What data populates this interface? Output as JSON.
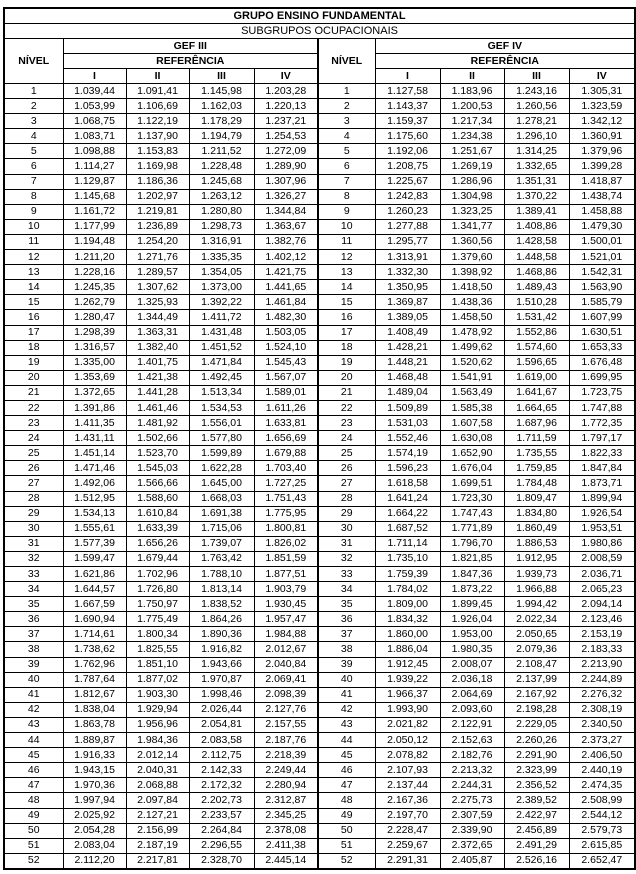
{
  "title": "GRUPO ENSINO FUNDAMENTAL",
  "subtitle": "SUBGRUPOS OCUPACIONAIS",
  "left": {
    "nivel_label": "NÍVEL",
    "group": "GEF III",
    "referencia": "REFERÊNCIA",
    "refs": [
      "I",
      "II",
      "III",
      "IV"
    ]
  },
  "right": {
    "nivel_label": "NÍVEL",
    "group": "GEF IV",
    "referencia": "REFERÊNCIA",
    "refs": [
      "I",
      "II",
      "III",
      "IV"
    ]
  },
  "rows": [
    {
      "n": "1",
      "g3": [
        "1.039,44",
        "1.091,41",
        "1.145,98",
        "1.203,28"
      ],
      "g4": [
        "1.127,58",
        "1.183,96",
        "1.243,16",
        "1.305,31"
      ]
    },
    {
      "n": "2",
      "g3": [
        "1.053,99",
        "1.106,69",
        "1.162,03",
        "1.220,13"
      ],
      "g4": [
        "1.143,37",
        "1.200,53",
        "1.260,56",
        "1.323,59"
      ]
    },
    {
      "n": "3",
      "g3": [
        "1.068,75",
        "1.122,19",
        "1.178,29",
        "1.237,21"
      ],
      "g4": [
        "1.159,37",
        "1.217,34",
        "1.278,21",
        "1.342,12"
      ]
    },
    {
      "n": "4",
      "g3": [
        "1.083,71",
        "1.137,90",
        "1.194,79",
        "1.254,53"
      ],
      "g4": [
        "1.175,60",
        "1.234,38",
        "1.296,10",
        "1.360,91"
      ]
    },
    {
      "n": "5",
      "g3": [
        "1.098,88",
        "1.153,83",
        "1.211,52",
        "1.272,09"
      ],
      "g4": [
        "1.192,06",
        "1.251,67",
        "1.314,25",
        "1.379,96"
      ]
    },
    {
      "n": "6",
      "g3": [
        "1.114,27",
        "1.169,98",
        "1.228,48",
        "1.289,90"
      ],
      "g4": [
        "1.208,75",
        "1.269,19",
        "1.332,65",
        "1.399,28"
      ]
    },
    {
      "n": "7",
      "g3": [
        "1.129,87",
        "1.186,36",
        "1.245,68",
        "1.307,96"
      ],
      "g4": [
        "1.225,67",
        "1.286,96",
        "1.351,31",
        "1.418,87"
      ]
    },
    {
      "n": "8",
      "g3": [
        "1.145,68",
        "1.202,97",
        "1.263,12",
        "1.326,27"
      ],
      "g4": [
        "1.242,83",
        "1.304,98",
        "1.370,22",
        "1.438,74"
      ]
    },
    {
      "n": "9",
      "g3": [
        "1.161,72",
        "1.219,81",
        "1.280,80",
        "1.344,84"
      ],
      "g4": [
        "1.260,23",
        "1.323,25",
        "1.389,41",
        "1.458,88"
      ]
    },
    {
      "n": "10",
      "g3": [
        "1.177,99",
        "1.236,89",
        "1.298,73",
        "1.363,67"
      ],
      "g4": [
        "1.277,88",
        "1.341,77",
        "1.408,86",
        "1.479,30"
      ]
    },
    {
      "n": "11",
      "g3": [
        "1.194,48",
        "1.254,20",
        "1.316,91",
        "1.382,76"
      ],
      "g4": [
        "1.295,77",
        "1.360,56",
        "1.428,58",
        "1.500,01"
      ]
    },
    {
      "n": "12",
      "g3": [
        "1.211,20",
        "1.271,76",
        "1.335,35",
        "1.402,12"
      ],
      "g4": [
        "1.313,91",
        "1.379,60",
        "1.448,58",
        "1.521,01"
      ]
    },
    {
      "n": "13",
      "g3": [
        "1.228,16",
        "1.289,57",
        "1.354,05",
        "1.421,75"
      ],
      "g4": [
        "1.332,30",
        "1.398,92",
        "1.468,86",
        "1.542,31"
      ]
    },
    {
      "n": "14",
      "g3": [
        "1.245,35",
        "1.307,62",
        "1.373,00",
        "1.441,65"
      ],
      "g4": [
        "1.350,95",
        "1.418,50",
        "1.489,43",
        "1.563,90"
      ]
    },
    {
      "n": "15",
      "g3": [
        "1.262,79",
        "1.325,93",
        "1.392,22",
        "1.461,84"
      ],
      "g4": [
        "1.369,87",
        "1.438,36",
        "1.510,28",
        "1.585,79"
      ]
    },
    {
      "n": "16",
      "g3": [
        "1.280,47",
        "1.344,49",
        "1.411,72",
        "1.482,30"
      ],
      "g4": [
        "1.389,05",
        "1.458,50",
        "1.531,42",
        "1.607,99"
      ]
    },
    {
      "n": "17",
      "g3": [
        "1.298,39",
        "1.363,31",
        "1.431,48",
        "1.503,05"
      ],
      "g4": [
        "1.408,49",
        "1.478,92",
        "1.552,86",
        "1.630,51"
      ]
    },
    {
      "n": "18",
      "g3": [
        "1.316,57",
        "1.382,40",
        "1.451,52",
        "1.524,10"
      ],
      "g4": [
        "1.428,21",
        "1.499,62",
        "1.574,60",
        "1.653,33"
      ]
    },
    {
      "n": "19",
      "g3": [
        "1.335,00",
        "1.401,75",
        "1.471,84",
        "1.545,43"
      ],
      "g4": [
        "1.448,21",
        "1.520,62",
        "1.596,65",
        "1.676,48"
      ]
    },
    {
      "n": "20",
      "g3": [
        "1.353,69",
        "1.421,38",
        "1.492,45",
        "1.567,07"
      ],
      "g4": [
        "1.468,48",
        "1.541,91",
        "1.619,00",
        "1.699,95"
      ]
    },
    {
      "n": "21",
      "g3": [
        "1.372,65",
        "1.441,28",
        "1.513,34",
        "1.589,01"
      ],
      "g4": [
        "1.489,04",
        "1.563,49",
        "1.641,67",
        "1.723,75"
      ]
    },
    {
      "n": "22",
      "g3": [
        "1.391,86",
        "1.461,46",
        "1.534,53",
        "1.611,26"
      ],
      "g4": [
        "1.509,89",
        "1.585,38",
        "1.664,65",
        "1.747,88"
      ]
    },
    {
      "n": "23",
      "g3": [
        "1.411,35",
        "1.481,92",
        "1.556,01",
        "1.633,81"
      ],
      "g4": [
        "1.531,03",
        "1.607,58",
        "1.687,96",
        "1.772,35"
      ]
    },
    {
      "n": "24",
      "g3": [
        "1.431,11",
        "1.502,66",
        "1.577,80",
        "1.656,69"
      ],
      "g4": [
        "1.552,46",
        "1.630,08",
        "1.711,59",
        "1.797,17"
      ]
    },
    {
      "n": "25",
      "g3": [
        "1.451,14",
        "1.523,70",
        "1.599,89",
        "1.679,88"
      ],
      "g4": [
        "1.574,19",
        "1.652,90",
        "1.735,55",
        "1.822,33"
      ]
    },
    {
      "n": "26",
      "g3": [
        "1.471,46",
        "1.545,03",
        "1.622,28",
        "1.703,40"
      ],
      "g4": [
        "1.596,23",
        "1.676,04",
        "1.759,85",
        "1.847,84"
      ]
    },
    {
      "n": "27",
      "g3": [
        "1.492,06",
        "1.566,66",
        "1.645,00",
        "1.727,25"
      ],
      "g4": [
        "1.618,58",
        "1.699,51",
        "1.784,48",
        "1.873,71"
      ]
    },
    {
      "n": "28",
      "g3": [
        "1.512,95",
        "1.588,60",
        "1.668,03",
        "1.751,43"
      ],
      "g4": [
        "1.641,24",
        "1.723,30",
        "1.809,47",
        "1.899,94"
      ]
    },
    {
      "n": "29",
      "g3": [
        "1.534,13",
        "1.610,84",
        "1.691,38",
        "1.775,95"
      ],
      "g4": [
        "1.664,22",
        "1.747,43",
        "1.834,80",
        "1.926,54"
      ]
    },
    {
      "n": "30",
      "g3": [
        "1.555,61",
        "1.633,39",
        "1.715,06",
        "1.800,81"
      ],
      "g4": [
        "1.687,52",
        "1.771,89",
        "1.860,49",
        "1.953,51"
      ]
    },
    {
      "n": "31",
      "g3": [
        "1.577,39",
        "1.656,26",
        "1.739,07",
        "1.826,02"
      ],
      "g4": [
        "1.711,14",
        "1.796,70",
        "1.886,53",
        "1.980,86"
      ]
    },
    {
      "n": "32",
      "g3": [
        "1.599,47",
        "1.679,44",
        "1.763,42",
        "1.851,59"
      ],
      "g4": [
        "1.735,10",
        "1.821,85",
        "1.912,95",
        "2.008,59"
      ]
    },
    {
      "n": "33",
      "g3": [
        "1.621,86",
        "1.702,96",
        "1.788,10",
        "1.877,51"
      ],
      "g4": [
        "1.759,39",
        "1.847,36",
        "1.939,73",
        "2.036,71"
      ]
    },
    {
      "n": "34",
      "g3": [
        "1.644,57",
        "1.726,80",
        "1.813,14",
        "1.903,79"
      ],
      "g4": [
        "1.784,02",
        "1.873,22",
        "1.966,88",
        "2.065,23"
      ]
    },
    {
      "n": "35",
      "g3": [
        "1.667,59",
        "1.750,97",
        "1.838,52",
        "1.930,45"
      ],
      "g4": [
        "1.809,00",
        "1.899,45",
        "1.994,42",
        "2.094,14"
      ]
    },
    {
      "n": "36",
      "g3": [
        "1.690,94",
        "1.775,49",
        "1.864,26",
        "1.957,47"
      ],
      "g4": [
        "1.834,32",
        "1.926,04",
        "2.022,34",
        "2.123,46"
      ]
    },
    {
      "n": "37",
      "g3": [
        "1.714,61",
        "1.800,34",
        "1.890,36",
        "1.984,88"
      ],
      "g4": [
        "1.860,00",
        "1.953,00",
        "2.050,65",
        "2.153,19"
      ]
    },
    {
      "n": "38",
      "g3": [
        "1.738,62",
        "1.825,55",
        "1.916,82",
        "2.012,67"
      ],
      "g4": [
        "1.886,04",
        "1.980,35",
        "2.079,36",
        "2.183,33"
      ]
    },
    {
      "n": "39",
      "g3": [
        "1.762,96",
        "1.851,10",
        "1.943,66",
        "2.040,84"
      ],
      "g4": [
        "1.912,45",
        "2.008,07",
        "2.108,47",
        "2.213,90"
      ]
    },
    {
      "n": "40",
      "g3": [
        "1.787,64",
        "1.877,02",
        "1.970,87",
        "2.069,41"
      ],
      "g4": [
        "1.939,22",
        "2.036,18",
        "2.137,99",
        "2.244,89"
      ]
    },
    {
      "n": "41",
      "g3": [
        "1.812,67",
        "1.903,30",
        "1.998,46",
        "2.098,39"
      ],
      "g4": [
        "1.966,37",
        "2.064,69",
        "2.167,92",
        "2.276,32"
      ]
    },
    {
      "n": "42",
      "g3": [
        "1.838,04",
        "1.929,94",
        "2.026,44",
        "2.127,76"
      ],
      "g4": [
        "1.993,90",
        "2.093,60",
        "2.198,28",
        "2.308,19"
      ]
    },
    {
      "n": "43",
      "g3": [
        "1.863,78",
        "1.956,96",
        "2.054,81",
        "2.157,55"
      ],
      "g4": [
        "2.021,82",
        "2.122,91",
        "2.229,05",
        "2.340,50"
      ]
    },
    {
      "n": "44",
      "g3": [
        "1.889,87",
        "1.984,36",
        "2.083,58",
        "2.187,76"
      ],
      "g4": [
        "2.050,12",
        "2.152,63",
        "2.260,26",
        "2.373,27"
      ]
    },
    {
      "n": "45",
      "g3": [
        "1.916,33",
        "2.012,14",
        "2.112,75",
        "2.218,39"
      ],
      "g4": [
        "2.078,82",
        "2.182,76",
        "2.291,90",
        "2.406,50"
      ]
    },
    {
      "n": "46",
      "g3": [
        "1.943,15",
        "2.040,31",
        "2.142,33",
        "2.249,44"
      ],
      "g4": [
        "2.107,93",
        "2.213,32",
        "2.323,99",
        "2.440,19"
      ]
    },
    {
      "n": "47",
      "g3": [
        "1.970,36",
        "2.068,88",
        "2.172,32",
        "2.280,94"
      ],
      "g4": [
        "2.137,44",
        "2.244,31",
        "2.356,52",
        "2.474,35"
      ]
    },
    {
      "n": "48",
      "g3": [
        "1.997,94",
        "2.097,84",
        "2.202,73",
        "2.312,87"
      ],
      "g4": [
        "2.167,36",
        "2.275,73",
        "2.389,52",
        "2.508,99"
      ]
    },
    {
      "n": "49",
      "g3": [
        "2.025,92",
        "2.127,21",
        "2.233,57",
        "2.345,25"
      ],
      "g4": [
        "2.197,70",
        "2.307,59",
        "2.422,97",
        "2.544,12"
      ]
    },
    {
      "n": "50",
      "g3": [
        "2.054,28",
        "2.156,99",
        "2.264,84",
        "2.378,08"
      ],
      "g4": [
        "2.228,47",
        "2.339,90",
        "2.456,89",
        "2.579,73"
      ]
    },
    {
      "n": "51",
      "g3": [
        "2.083,04",
        "2.187,19",
        "2.296,55",
        "2.411,38"
      ],
      "g4": [
        "2.259,67",
        "2.372,65",
        "2.491,29",
        "2.615,85"
      ]
    },
    {
      "n": "52",
      "g3": [
        "2.112,20",
        "2.217,81",
        "2.328,70",
        "2.445,14"
      ],
      "g4": [
        "2.291,31",
        "2.405,87",
        "2.526,16",
        "2.652,47"
      ]
    }
  ]
}
